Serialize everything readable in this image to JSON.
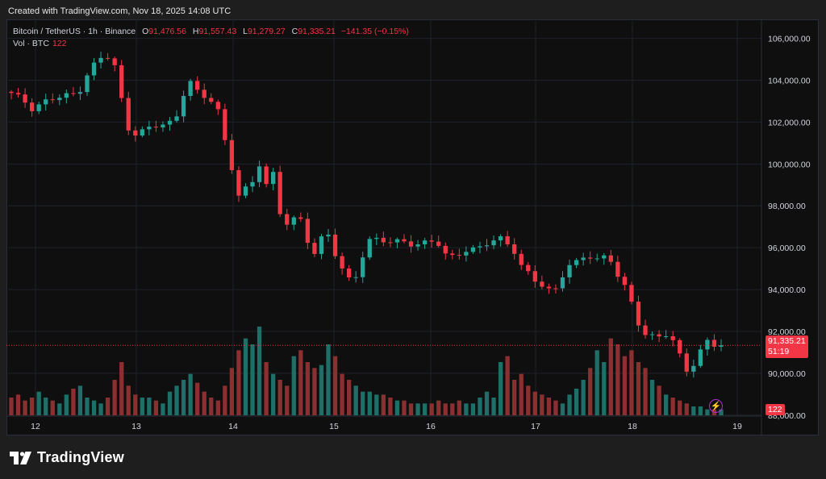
{
  "caption": "Created with TradingView.com, Nov 18, 2025 14:08 UTC",
  "legend": {
    "symbol": "Bitcoin / TetherUS · 1h · Binance",
    "o_key": "O",
    "o": "91,476.56",
    "h_key": "H",
    "h": "91,557.43",
    "l_key": "L",
    "l": "91,279.27",
    "c_key": "C",
    "c": "91,335.21",
    "change": "−141.35 (−0.15%)",
    "vol_label": "Vol · BTC",
    "vol_value": "122"
  },
  "price_tag": {
    "price": "91,335.21",
    "countdown": "51:19"
  },
  "volume_tag": "122",
  "brand": "TradingView",
  "colors": {
    "up": "#26a69a",
    "down": "#f23645",
    "vol_up": "#1f6e68",
    "vol_down": "#8b2f31",
    "grid": "#1f2229",
    "accent_icon": "#b42bd6"
  },
  "chart_data": {
    "type": "candlestick",
    "interval": "1h",
    "y_ticks": [
      "106,000.00",
      "104,000.00",
      "102,000.00",
      "100,000.00",
      "98,000.00",
      "96,000.00",
      "94,000.00",
      "92,000.00",
      "90,000.00",
      "88,000.00"
    ],
    "x_ticks": [
      "12",
      "13",
      "14",
      "15",
      "16",
      "17",
      "18",
      "19"
    ],
    "ylim": [
      87800,
      106600
    ],
    "last_price": 91335.21,
    "close_path": [
      [
        0,
        103300
      ],
      [
        2,
        103000
      ],
      [
        3,
        102700
      ],
      [
        5,
        103000
      ],
      [
        8,
        103200
      ],
      [
        10,
        103400
      ],
      [
        11,
        104200
      ],
      [
        13,
        105000
      ],
      [
        15,
        105100
      ],
      [
        16,
        104000
      ],
      [
        17,
        102000
      ],
      [
        18,
        101500
      ],
      [
        20,
        101600
      ],
      [
        22,
        101800
      ],
      [
        24,
        102000
      ],
      [
        25,
        102500
      ],
      [
        26,
        103800
      ],
      [
        27,
        104000
      ],
      [
        28,
        103200
      ],
      [
        30,
        103000
      ],
      [
        31,
        102500
      ],
      [
        32,
        101000
      ],
      [
        33,
        99800
      ],
      [
        34,
        98500
      ],
      [
        36,
        99000
      ],
      [
        37,
        100000
      ],
      [
        38,
        99000
      ],
      [
        39,
        99800
      ],
      [
        40,
        97800
      ],
      [
        41,
        97200
      ],
      [
        43,
        97400
      ],
      [
        44,
        96500
      ],
      [
        45,
        95600
      ],
      [
        46,
        96300
      ],
      [
        47,
        97000
      ],
      [
        48,
        96000
      ],
      [
        50,
        94500
      ],
      [
        51,
        94200
      ],
      [
        52,
        95000
      ],
      [
        53,
        96400
      ],
      [
        54,
        96500
      ],
      [
        56,
        96300
      ],
      [
        58,
        96200
      ],
      [
        60,
        96200
      ],
      [
        61,
        96300
      ],
      [
        63,
        96300
      ],
      [
        64,
        96100
      ],
      [
        65,
        95500
      ],
      [
        66,
        95500
      ],
      [
        68,
        96000
      ],
      [
        70,
        96000
      ],
      [
        72,
        96300
      ],
      [
        73,
        96400
      ],
      [
        75,
        96000
      ],
      [
        76,
        95300
      ],
      [
        78,
        94400
      ],
      [
        80,
        94000
      ],
      [
        81,
        93800
      ],
      [
        82,
        94500
      ],
      [
        83,
        95300
      ],
      [
        85,
        95300
      ],
      [
        86,
        95600
      ],
      [
        87,
        95400
      ],
      [
        89,
        95600
      ],
      [
        90,
        95300
      ],
      [
        91,
        94400
      ],
      [
        92,
        94000
      ],
      [
        93,
        92800
      ],
      [
        94,
        92000
      ],
      [
        95,
        91800
      ],
      [
        97,
        91800
      ],
      [
        98,
        92000
      ],
      [
        99,
        91500
      ],
      [
        100,
        90600
      ],
      [
        101,
        89900
      ],
      [
        102,
        90500
      ],
      [
        103,
        91200
      ],
      [
        104,
        91600
      ],
      [
        105,
        91400
      ],
      [
        106,
        91335
      ]
    ],
    "volume": [
      3,
      3.5,
      2.5,
      3,
      4,
      3,
      2.5,
      2,
      3.5,
      4.5,
      5,
      3,
      2.5,
      2,
      3,
      6,
      9,
      5,
      3.5,
      3,
      3,
      2.5,
      2,
      4,
      5,
      6,
      7,
      5.5,
      4,
      3,
      2.5,
      5,
      8,
      11,
      13,
      12,
      15,
      9,
      7,
      6,
      5,
      10,
      11,
      9,
      8,
      8.5,
      12,
      10,
      7,
      6,
      5,
      4,
      4,
      3.5,
      3.5,
      3,
      2.5,
      2.5,
      2,
      2,
      2,
      2,
      2.5,
      2,
      2,
      2.5,
      2,
      2,
      3,
      4,
      3,
      9,
      10,
      6,
      7,
      5,
      4,
      3.5,
      3,
      2.5,
      2,
      3.5,
      4.5,
      6,
      8,
      11,
      9,
      13,
      12,
      10,
      11,
      9,
      8,
      6,
      5,
      3.5,
      3,
      2.5,
      2,
      1.5,
      1.5,
      1,
      1,
      1
    ]
  }
}
